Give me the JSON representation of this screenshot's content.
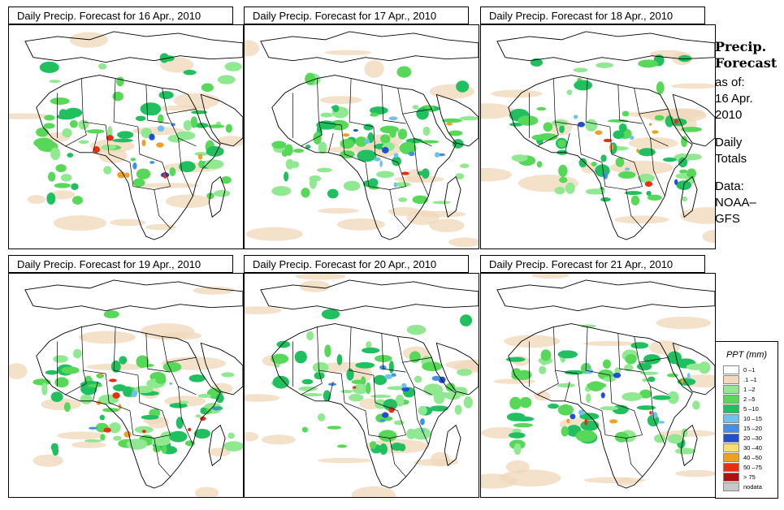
{
  "panels": [
    {
      "title": "Daily Precip. Forecast for  16 Apr., 2010",
      "seed": 11
    },
    {
      "title": "Daily Precip. Forecast for  17 Apr., 2010",
      "seed": 23
    },
    {
      "title": "Daily Precip. Forecast for  18 Apr., 2010",
      "seed": 37
    },
    {
      "title": "Daily Precip. Forecast for  19 Apr., 2010",
      "seed": 41
    },
    {
      "title": "Daily Precip. Forecast for  20 Apr., 2010",
      "seed": 53
    },
    {
      "title": "Daily Precip. Forecast for  21 Apr., 2010",
      "seed": 67
    }
  ],
  "side": {
    "title1": "Precip.",
    "title2": "Forecast",
    "asof": "as of:",
    "date1": "16 Apr.",
    "date2": "2010",
    "daily1": "Daily",
    "daily2": "Totals",
    "data1": "Data:",
    "data2": "NOAA–",
    "data3": "GFS"
  },
  "legend": {
    "title": "PPT (mm)",
    "items": [
      {
        "label": "0 –1",
        "color": "#ffffff"
      },
      {
        "label": ".1 –1",
        "color": "#f0d9bd"
      },
      {
        "label": "1 –2",
        "color": "#90e890"
      },
      {
        "label": "2 –5",
        "color": "#58d858"
      },
      {
        "label": "5 –10",
        "color": "#20c060"
      },
      {
        "label": "10 –15",
        "color": "#70c0f0"
      },
      {
        "label": "15 –20",
        "color": "#4090e8"
      },
      {
        "label": "20 –30",
        "color": "#2050d0"
      },
      {
        "label": "30 –40",
        "color": "#f8e070"
      },
      {
        "label": "40 –50",
        "color": "#f0a020"
      },
      {
        "label": "50 –75",
        "color": "#e83010"
      },
      {
        "label": "> 75",
        "color": "#b01010"
      },
      {
        "label": "nodata",
        "color": "#c8c8c8"
      }
    ]
  }
}
